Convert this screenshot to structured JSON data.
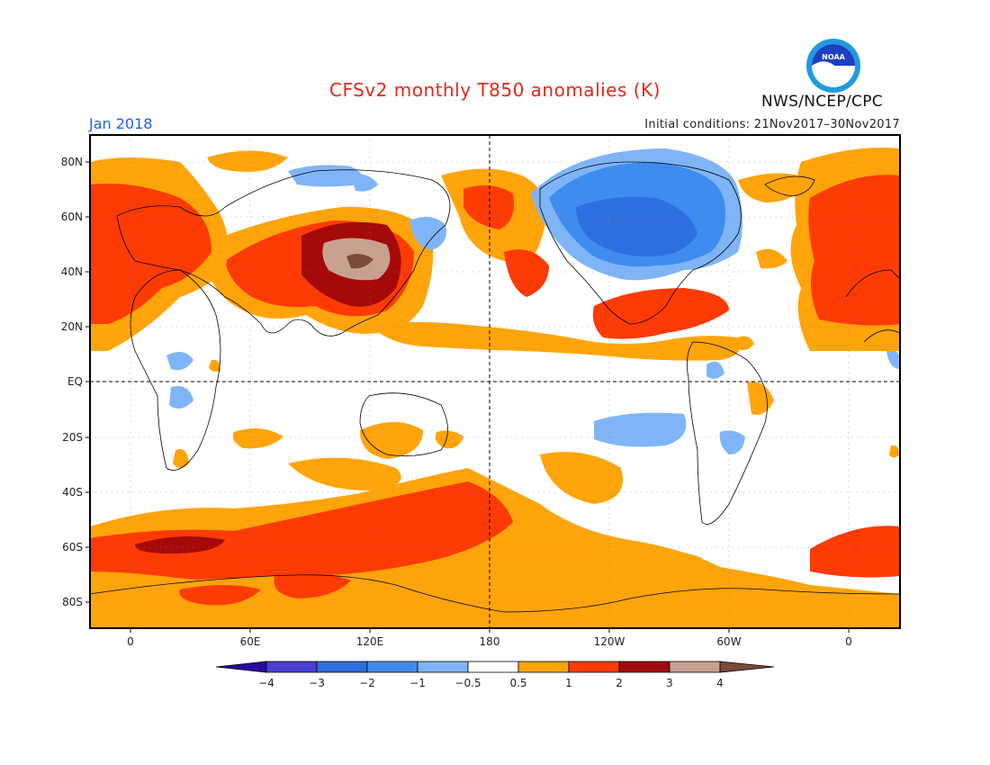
{
  "header": {
    "title": "CFSv2 monthly T850 anomalies (K)",
    "period": "Jan 2018",
    "initial_conditions": "Initial conditions: 21Nov2017–30Nov2017",
    "agency": "NWS/NCEP/CPC",
    "logo_text": "NOAA"
  },
  "axes": {
    "lat_labels": [
      "80N",
      "60N",
      "40N",
      "20N",
      "EQ",
      "20S",
      "40S",
      "60S",
      "80S"
    ],
    "lon_labels": [
      "0",
      "60E",
      "120E",
      "180",
      "120W",
      "60W",
      "0"
    ]
  },
  "colorbar": {
    "tick_labels": [
      "−4",
      "−3",
      "−2",
      "−1",
      "−0.5",
      "0.5",
      "1",
      "2",
      "3",
      "4"
    ],
    "colors": [
      "#2a0a9e",
      "#4a3fd6",
      "#2e6fdf",
      "#3f8cf0",
      "#7fb5f7",
      "#ffffff",
      "#ffa40a",
      "#ff3b05",
      "#a50a0a",
      "#c8a090",
      "#7a4a3a"
    ]
  },
  "map": {
    "background": "#ffffff",
    "land_outline": "#000000",
    "anomaly_colors": {
      "strong_cold": "#2e6fdf",
      "moderate_cold": "#3f8cf0",
      "weak_cold": "#7fb5f7",
      "weak_warm": "#ffa40a",
      "moderate_warm": "#ff3b05",
      "strong_warm": "#a50a0a",
      "very_strong_warm": "#c8a090",
      "extreme_warm": "#7a4a3a"
    }
  }
}
